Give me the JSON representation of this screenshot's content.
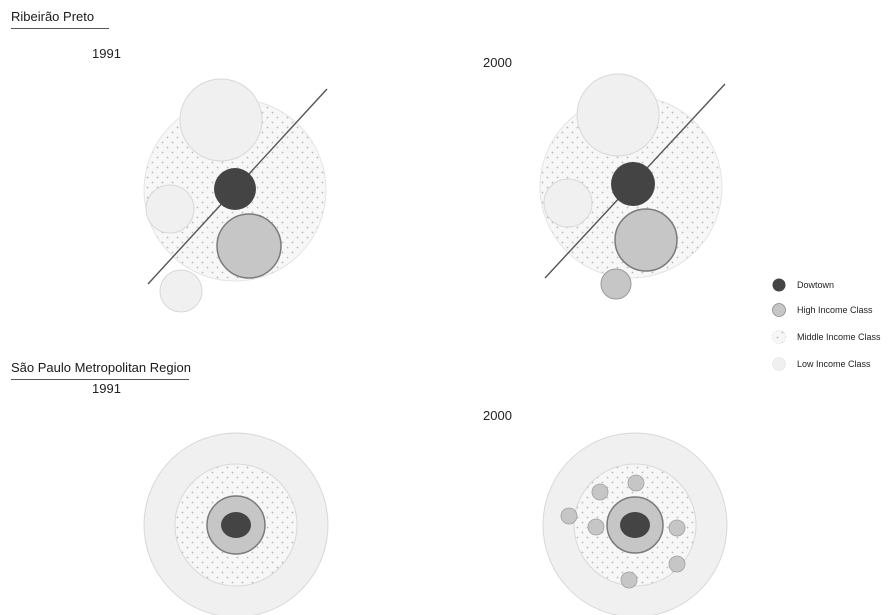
{
  "sections": [
    {
      "title": "Ribeirão Preto",
      "years": [
        "1991",
        "2000"
      ]
    },
    {
      "title": "São Paulo Metropolitan Region",
      "years": [
        "1991",
        "2000"
      ]
    }
  ],
  "legend": [
    {
      "label": "Dowtown",
      "swatch": "downtown"
    },
    {
      "label": "High Income Class",
      "swatch": "high"
    },
    {
      "label": "Middle Income Class",
      "swatch": "middle"
    },
    {
      "label": "Low Income Class",
      "swatch": "low"
    }
  ],
  "colors": {
    "downtown": "#444444",
    "high_fill": "#c6c6c6",
    "high_stroke": "#7a7a7a",
    "middle_fill": "#f7f7f7",
    "middle_dots": "#b8b8b8",
    "low_fill": "#f0f0f0",
    "low_stroke": "#d8d8d8",
    "axis_line": "#555555"
  }
}
